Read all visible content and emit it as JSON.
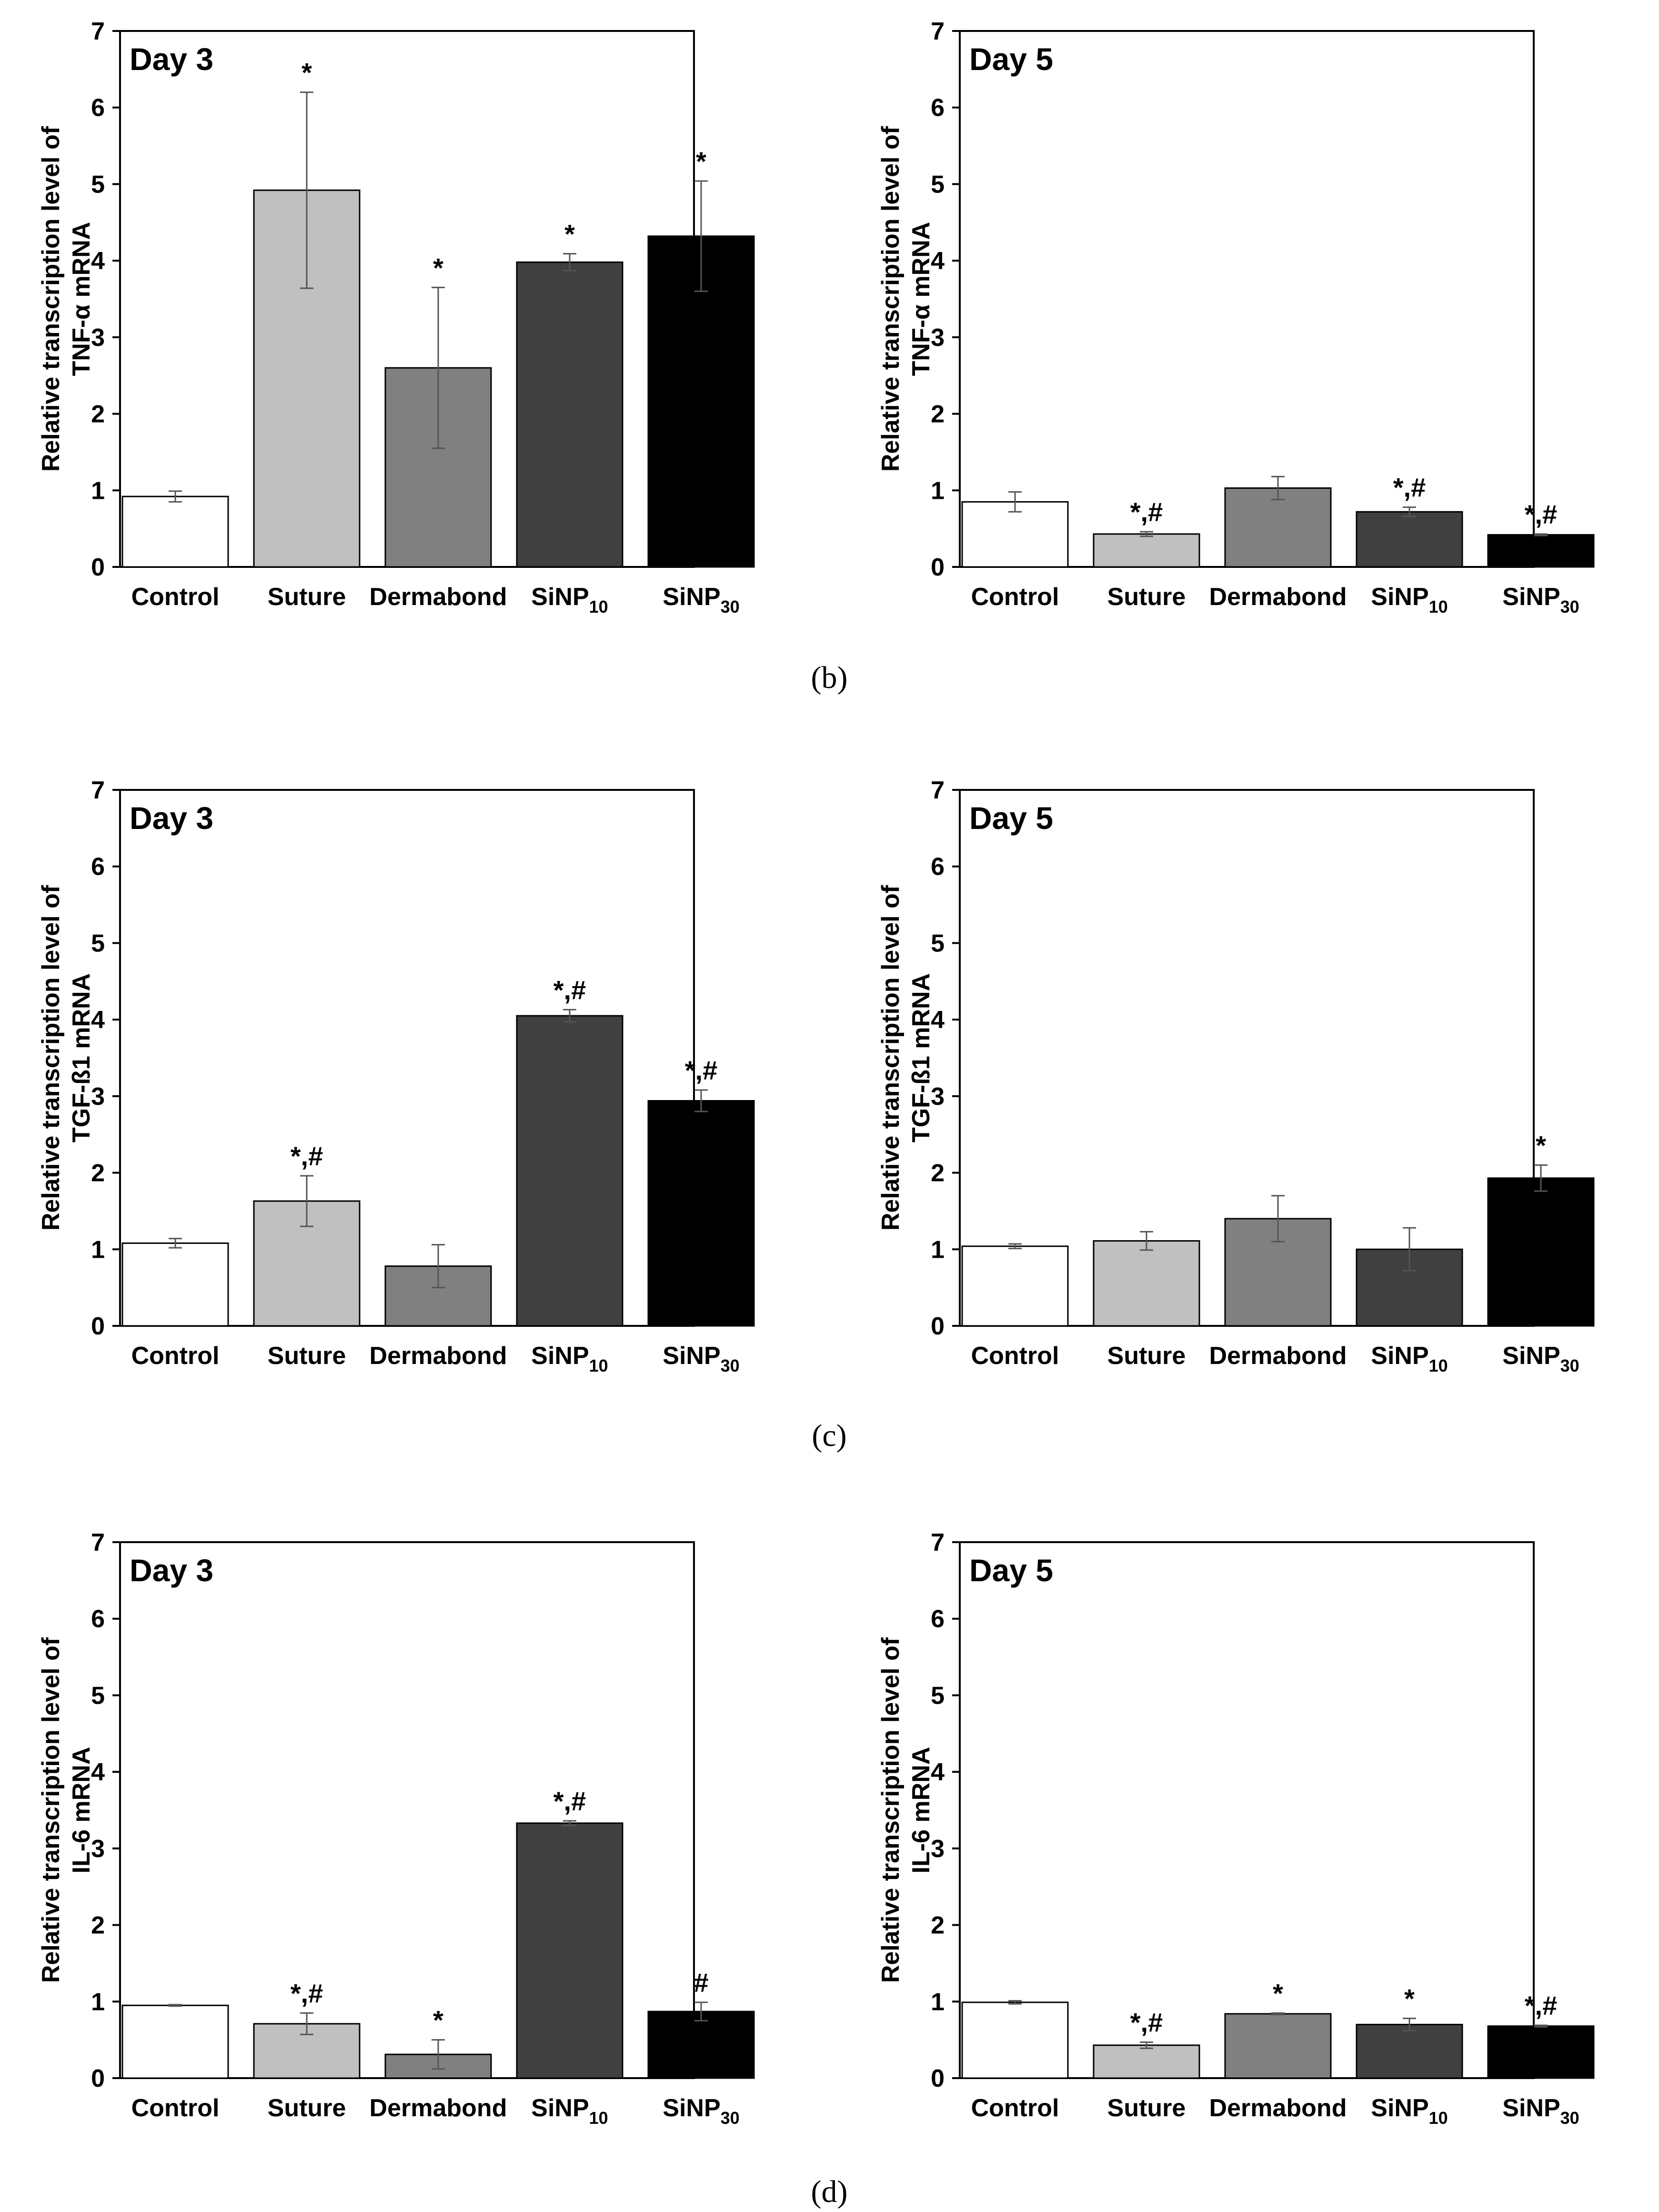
{
  "figure": {
    "panel_labels": [
      "(b)",
      "(c)",
      "(d)"
    ]
  },
  "colors": {
    "Control": "#ffffff",
    "Suture": "#c0c0c0",
    "Dermabond": "#808080",
    "SiNP10": "#404040",
    "SiNP30": "#000000",
    "frame": "#000000",
    "errorbar": "#555555"
  },
  "chart_data": [
    {
      "type": "bar",
      "row": 0,
      "col": 0,
      "title": "Day 3",
      "ylabel_line1": "Relative transcription level of",
      "ylabel_line2": "TNF-α mRNA",
      "ylim": [
        0,
        7
      ],
      "yticks": [
        0,
        1,
        2,
        3,
        4,
        5,
        6,
        7
      ],
      "categories": [
        {
          "base": "Control",
          "sub": "",
          "key": "Control"
        },
        {
          "base": "Suture",
          "sub": "",
          "key": "Suture"
        },
        {
          "base": "Dermabond",
          "sub": "",
          "key": "Dermabond"
        },
        {
          "base": "SiNP",
          "sub": "10",
          "key": "SiNP10"
        },
        {
          "base": "SiNP",
          "sub": "30",
          "key": "SiNP30"
        }
      ],
      "values": [
        0.92,
        4.92,
        2.6,
        3.98,
        4.32
      ],
      "errors": [
        0.07,
        1.28,
        1.05,
        0.11,
        0.72
      ],
      "annotations": [
        "",
        "*",
        "*",
        "*",
        "*"
      ]
    },
    {
      "type": "bar",
      "row": 0,
      "col": 1,
      "title": "Day 5",
      "ylabel_line1": "Relative transcription level of",
      "ylabel_line2": "TNF-α mRNA",
      "ylim": [
        0,
        7
      ],
      "yticks": [
        0,
        1,
        2,
        3,
        4,
        5,
        6,
        7
      ],
      "categories": [
        {
          "base": "Control",
          "sub": "",
          "key": "Control"
        },
        {
          "base": "Suture",
          "sub": "",
          "key": "Suture"
        },
        {
          "base": "Dermabond",
          "sub": "",
          "key": "Dermabond"
        },
        {
          "base": "SiNP",
          "sub": "10",
          "key": "SiNP10"
        },
        {
          "base": "SiNP",
          "sub": "30",
          "key": "SiNP30"
        }
      ],
      "values": [
        0.85,
        0.43,
        1.03,
        0.72,
        0.42
      ],
      "errors": [
        0.13,
        0.03,
        0.15,
        0.06,
        0.01
      ],
      "annotations": [
        "",
        "*,#",
        "",
        "*,#",
        "*,#"
      ]
    },
    {
      "type": "bar",
      "row": 1,
      "col": 0,
      "title": "Day 3",
      "ylabel_line1": "Relative transcription level of",
      "ylabel_line2": "TGF-ß1 mRNA",
      "ylim": [
        0,
        7
      ],
      "yticks": [
        0,
        1,
        2,
        3,
        4,
        5,
        6,
        7
      ],
      "categories": [
        {
          "base": "Control",
          "sub": "",
          "key": "Control"
        },
        {
          "base": "Suture",
          "sub": "",
          "key": "Suture"
        },
        {
          "base": "Dermabond",
          "sub": "",
          "key": "Dermabond"
        },
        {
          "base": "SiNP",
          "sub": "10",
          "key": "SiNP10"
        },
        {
          "base": "SiNP",
          "sub": "30",
          "key": "SiNP30"
        }
      ],
      "values": [
        1.08,
        1.63,
        0.78,
        4.05,
        2.94
      ],
      "errors": [
        0.06,
        0.33,
        0.28,
        0.08,
        0.14
      ],
      "annotations": [
        "",
        "*,#",
        "",
        "*,#",
        "*,#"
      ]
    },
    {
      "type": "bar",
      "row": 1,
      "col": 1,
      "title": "Day 5",
      "ylabel_line1": "Relative transcription level of",
      "ylabel_line2": "TGF-ß1 mRNA",
      "ylim": [
        0,
        7
      ],
      "yticks": [
        0,
        1,
        2,
        3,
        4,
        5,
        6,
        7
      ],
      "categories": [
        {
          "base": "Control",
          "sub": "",
          "key": "Control"
        },
        {
          "base": "Suture",
          "sub": "",
          "key": "Suture"
        },
        {
          "base": "Dermabond",
          "sub": "",
          "key": "Dermabond"
        },
        {
          "base": "SiNP",
          "sub": "10",
          "key": "SiNP10"
        },
        {
          "base": "SiNP",
          "sub": "30",
          "key": "SiNP30"
        }
      ],
      "values": [
        1.04,
        1.11,
        1.4,
        1.0,
        1.93
      ],
      "errors": [
        0.03,
        0.12,
        0.3,
        0.28,
        0.17
      ],
      "annotations": [
        "",
        "",
        "",
        "",
        "*"
      ]
    },
    {
      "type": "bar",
      "row": 2,
      "col": 0,
      "title": "Day 3",
      "ylabel_line1": "Relative transcription level of",
      "ylabel_line2": "IL-6 mRNA",
      "ylim": [
        0,
        7
      ],
      "yticks": [
        0,
        1,
        2,
        3,
        4,
        5,
        6,
        7
      ],
      "categories": [
        {
          "base": "Control",
          "sub": "",
          "key": "Control"
        },
        {
          "base": "Suture",
          "sub": "",
          "key": "Suture"
        },
        {
          "base": "Dermabond",
          "sub": "",
          "key": "Dermabond"
        },
        {
          "base": "SiNP",
          "sub": "10",
          "key": "SiNP10"
        },
        {
          "base": "SiNP",
          "sub": "30",
          "key": "SiNP30"
        }
      ],
      "values": [
        0.95,
        0.71,
        0.31,
        3.33,
        0.87
      ],
      "errors": [
        0.01,
        0.14,
        0.19,
        0.03,
        0.12
      ],
      "annotations": [
        "",
        "*,#",
        "*",
        "*,#",
        "#"
      ]
    },
    {
      "type": "bar",
      "row": 2,
      "col": 1,
      "title": "Day 5",
      "ylabel_line1": "Relative transcription level of",
      "ylabel_line2": "IL-6 mRNA",
      "ylim": [
        0,
        7
      ],
      "yticks": [
        0,
        1,
        2,
        3,
        4,
        5,
        6,
        7
      ],
      "categories": [
        {
          "base": "Control",
          "sub": "",
          "key": "Control"
        },
        {
          "base": "Suture",
          "sub": "",
          "key": "Suture"
        },
        {
          "base": "Dermabond",
          "sub": "",
          "key": "Dermabond"
        },
        {
          "base": "SiNP",
          "sub": "10",
          "key": "SiNP10"
        },
        {
          "base": "SiNP",
          "sub": "30",
          "key": "SiNP30"
        }
      ],
      "values": [
        0.99,
        0.43,
        0.84,
        0.7,
        0.68
      ],
      "errors": [
        0.02,
        0.04,
        0.01,
        0.08,
        0.01
      ],
      "annotations": [
        "",
        "*,#",
        "*",
        "*",
        "*,#"
      ]
    }
  ]
}
